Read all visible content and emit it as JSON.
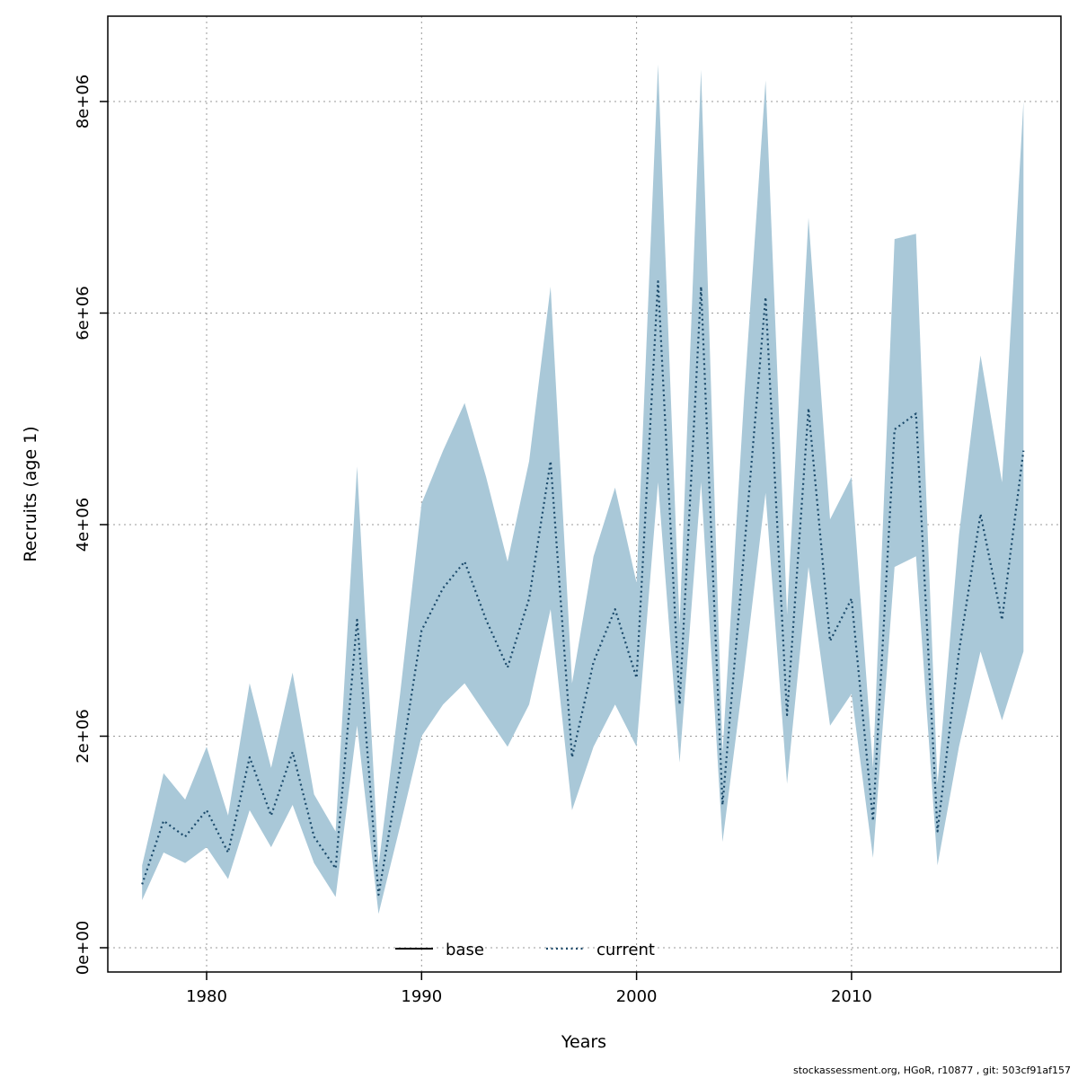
{
  "chart_data": {
    "type": "line",
    "title": "",
    "xlabel": "Years",
    "ylabel": "Recruits (age 1)",
    "footer": "stockassessment.org, HGoR, r10877 , git: 503cf91af157",
    "colors": {
      "band": "#a9c8d8",
      "current_line": "#1b4a6b",
      "base_line": "#000000",
      "grid": "#999999"
    },
    "legend": [
      {
        "label": "base",
        "style": "solid",
        "color": "#000000"
      },
      {
        "label": "current",
        "style": "dotted",
        "color": "#1b4a6b"
      }
    ],
    "xlim": [
      1976.3,
      2018.8
    ],
    "ylim": [
      0,
      8600000
    ],
    "grid": true,
    "legend_position": "bottom-center-inside",
    "xticks": [
      {
        "value": 1980,
        "label": "1980"
      },
      {
        "value": 1990,
        "label": "1990"
      },
      {
        "value": 2000,
        "label": "2000"
      },
      {
        "value": 2010,
        "label": "2010"
      }
    ],
    "yticks": [
      {
        "value": 0,
        "label": "0e+00"
      },
      {
        "value": 2000000,
        "label": "2e+06"
      },
      {
        "value": 4000000,
        "label": "4e+06"
      },
      {
        "value": 6000000,
        "label": "6e+06"
      },
      {
        "value": 8000000,
        "label": "8e+06"
      }
    ],
    "x": [
      1977,
      1978,
      1979,
      1980,
      1981,
      1982,
      1983,
      1984,
      1985,
      1986,
      1987,
      1988,
      1989,
      1990,
      1991,
      1992,
      1993,
      1994,
      1995,
      1996,
      1997,
      1998,
      1999,
      2000,
      2001,
      2002,
      2003,
      2004,
      2005,
      2006,
      2007,
      2008,
      2009,
      2010,
      2011,
      2012,
      2013,
      2014,
      2015,
      2016,
      2017,
      2018
    ],
    "series": [
      {
        "name": "current",
        "style": "dotted",
        "values": [
          600000,
          1200000,
          1050000,
          1300000,
          900000,
          1800000,
          1250000,
          1850000,
          1050000,
          750000,
          3100000,
          500000,
          1700000,
          3000000,
          3400000,
          3650000,
          3100000,
          2650000,
          3300000,
          4600000,
          1800000,
          2700000,
          3200000,
          2550000,
          6300000,
          2300000,
          6250000,
          1350000,
          3750000,
          6150000,
          2200000,
          5100000,
          2900000,
          3300000,
          1200000,
          4900000,
          5050000,
          1100000,
          2800000,
          4100000,
          3100000,
          4700000
        ]
      }
    ],
    "band": {
      "name": "confidence-band",
      "low": [
        450000,
        900000,
        800000,
        950000,
        650000,
        1300000,
        950000,
        1350000,
        800000,
        480000,
        2100000,
        320000,
        1150000,
        2000000,
        2300000,
        2500000,
        2200000,
        1900000,
        2300000,
        3200000,
        1300000,
        1900000,
        2300000,
        1900000,
        4400000,
        1750000,
        4400000,
        1000000,
        2600000,
        4300000,
        1550000,
        3600000,
        2100000,
        2400000,
        850000,
        3600000,
        3700000,
        780000,
        1900000,
        2800000,
        2150000,
        2800000
      ],
      "high": [
        780000,
        1650000,
        1400000,
        1900000,
        1250000,
        2500000,
        1700000,
        2600000,
        1450000,
        1100000,
        4550000,
        780000,
        2400000,
        4200000,
        4700000,
        5150000,
        4450000,
        3650000,
        4600000,
        6250000,
        2500000,
        3700000,
        4350000,
        3450000,
        8350000,
        3050000,
        8300000,
        1850000,
        5200000,
        8200000,
        3150000,
        6900000,
        4050000,
        4450000,
        1700000,
        6700000,
        6750000,
        1550000,
        3900000,
        5600000,
        4400000,
        8000000
      ]
    }
  }
}
